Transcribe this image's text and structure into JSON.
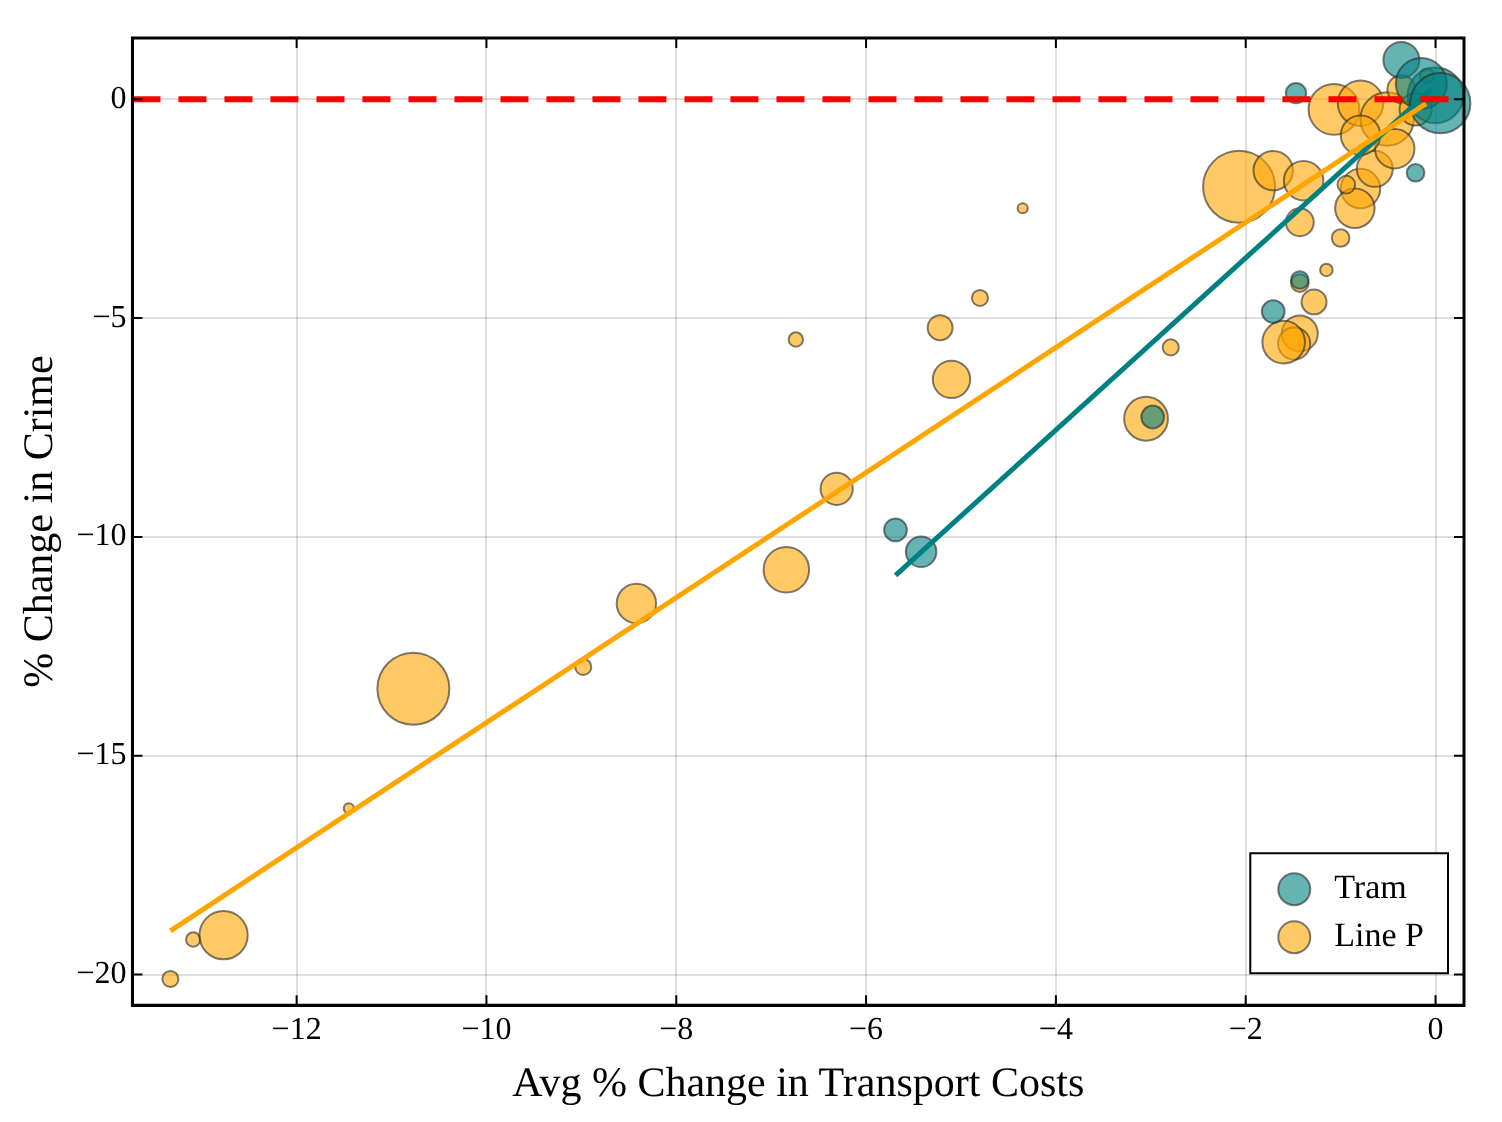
{
  "chart_data": {
    "type": "bubble",
    "xlabel": "Avg % Change in Transport Costs",
    "ylabel": "% Change in Crime",
    "xlim": [
      -13.73,
      0.3
    ],
    "xticks": [
      {
        "value": -12,
        "label": "−12"
      },
      {
        "value": -10,
        "label": "−10"
      },
      {
        "value": -8,
        "label": "−8"
      },
      {
        "value": -6,
        "label": "−6"
      },
      {
        "value": -4,
        "label": "−4"
      },
      {
        "value": -2,
        "label": "−2"
      },
      0
    ],
    "ylim": [
      -20.7,
      1.4
    ],
    "yticks": [
      {
        "value": -20,
        "label": "−20"
      },
      {
        "value": -15,
        "label": "−15"
      },
      {
        "value": -10,
        "label": "−10"
      },
      {
        "value": -5,
        "label": "−5"
      },
      0
    ],
    "grid": true,
    "legend": "bottom right",
    "series": [
      {
        "name": "Tram",
        "color": "#008080",
        "marker": "circle",
        "x": [
          -5.69,
          -5.42,
          -2.98,
          -1.71,
          -1.43,
          -1.47,
          -0.36,
          0,
          -0.15,
          -0.21,
          0.05
        ],
        "values": [
          -9.84,
          -10.34,
          -7.26,
          -4.85,
          -4.13,
          0.14,
          0.9,
          0.09,
          0.36,
          -1.68,
          -0.09
        ],
        "sizes": [
          0.1,
          0.18,
          0.1,
          0.1,
          0.06,
          0.08,
          0.25,
          0.6,
          0.5,
          0.06,
          0.7
        ]
      },
      {
        "name": "Line P",
        "color": "#ffa500",
        "marker": "circle",
        "x": [
          -13.33,
          -13.09,
          -12.77,
          -11.45,
          -10.77,
          -8.98,
          -8.42,
          -6.84,
          -6.31,
          -6.74,
          -5.1,
          -5.22,
          -4.8,
          -4.35,
          -3.05,
          -2.79,
          -2.07,
          -1.71,
          -1.39,
          -1.43,
          -1.0,
          -1.15,
          -1.43,
          -1.49,
          -1.6,
          -1.28,
          -1.43,
          -1.07,
          -0.79,
          -0.51,
          -0.79,
          -0.85,
          -0.64,
          -0.94,
          -0.36,
          -0.09,
          -0.43,
          -0.79,
          -0.21
        ],
        "values": [
          -20.1,
          -19.2,
          -19.1,
          -16.2,
          -13.47,
          -12.97,
          -11.52,
          -10.75,
          -8.9,
          -5.49,
          -6.4,
          -5.22,
          -4.54,
          -2.49,
          -7.3,
          -5.67,
          -2.0,
          -1.63,
          -1.86,
          -2.81,
          -3.17,
          -3.9,
          -5.35,
          -5.58,
          -5.55,
          -4.63,
          -4.2,
          -0.23,
          -0.09,
          -0.45,
          -2.04,
          -2.49,
          -1.59,
          -1.95,
          0.23,
          0.54,
          -1.13,
          -0.82,
          -0.23
        ],
        "sizes": [
          0.05,
          0.04,
          0.45,
          0.02,
          1,
          0.05,
          0.3,
          0.4,
          0.2,
          0.04,
          0.27,
          0.12,
          0.05,
          0.02,
          0.37,
          0.05,
          1,
          0.3,
          0.3,
          0.15,
          0.06,
          0.03,
          0.25,
          0.2,
          0.35,
          0.12,
          0.06,
          0.5,
          0.4,
          0.55,
          0.3,
          0.3,
          0.25,
          0.06,
          0.15,
          0.04,
          0.3,
          0.3,
          0.2
        ]
      },
      {
        "type": "line",
        "color": "#ffa500",
        "marker": "none",
        "x": [
          -13.33,
          -0.1
        ],
        "values": [
          -19.0,
          -0.1
        ]
      },
      {
        "type": "line",
        "color": "#008080",
        "marker": "none",
        "x": [
          -5.69,
          -0.04
        ],
        "values": [
          -10.88,
          0.23
        ]
      }
    ],
    "ref_lines": [
      {
        "axis": "y",
        "value": 0,
        "color": "#ff0000",
        "line_style": "dashed"
      }
    ]
  }
}
